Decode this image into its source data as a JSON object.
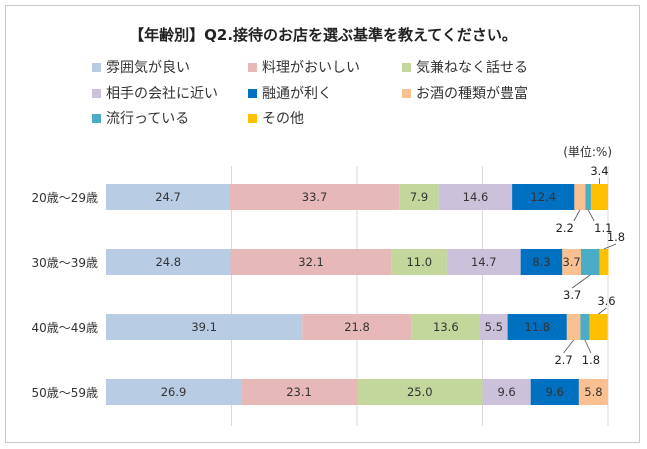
{
  "chart_data": {
    "type": "bar",
    "orientation": "horizontal",
    "stacked": true,
    "title": "【年齢別】Q2.接待のお店を選ぶ基準を教えてください。",
    "unit_note": "(単位:%)",
    "xlim": [
      0,
      100
    ],
    "grid": true,
    "legend_placement": "top",
    "categories": [
      "20歳〜29歳",
      "30歳〜39歳",
      "40歳〜49歳",
      "50歳〜59歳"
    ],
    "series": [
      {
        "name": "雰囲気が良い",
        "color": "#b8cce4",
        "values": [
          24.7,
          24.8,
          39.1,
          26.9
        ]
      },
      {
        "name": "料理がおいしい",
        "color": "#e6b9b8",
        "values": [
          33.7,
          32.1,
          21.8,
          23.1
        ]
      },
      {
        "name": "気兼ねなく話せる",
        "color": "#c3d69b",
        "values": [
          7.9,
          11.0,
          13.6,
          25.0
        ]
      },
      {
        "name": "相手の会社に近い",
        "color": "#ccc1da",
        "values": [
          14.6,
          14.7,
          5.5,
          9.6
        ]
      },
      {
        "name": "融通が利く",
        "color": "#0070c0",
        "values": [
          12.4,
          8.3,
          11.8,
          9.6
        ]
      },
      {
        "name": "お酒の種類が豊富",
        "color": "#fac090",
        "values": [
          2.2,
          3.7,
          2.7,
          5.8
        ]
      },
      {
        "name": "流行っている",
        "color": "#4bacc6",
        "values": [
          1.1,
          3.7,
          1.8,
          0
        ]
      },
      {
        "name": "その他",
        "color": "#ffc000",
        "values": [
          3.4,
          1.8,
          3.6,
          0
        ]
      }
    ],
    "data_labels": [
      [
        "24.7",
        "33.7",
        "7.9",
        "14.6",
        "12.4",
        "2.2",
        "1.1",
        "3.4"
      ],
      [
        "24.8",
        "32.1",
        "11.0",
        "14.7",
        "8.3",
        "3.7",
        "3.7",
        "1.8"
      ],
      [
        "39.1",
        "21.8",
        "13.6",
        "5.5",
        "11.8",
        "2.7",
        "1.8",
        "3.6"
      ],
      [
        "26.9",
        "23.1",
        "25.0",
        "9.6",
        "9.6",
        "5.8",
        "",
        ""
      ]
    ]
  }
}
